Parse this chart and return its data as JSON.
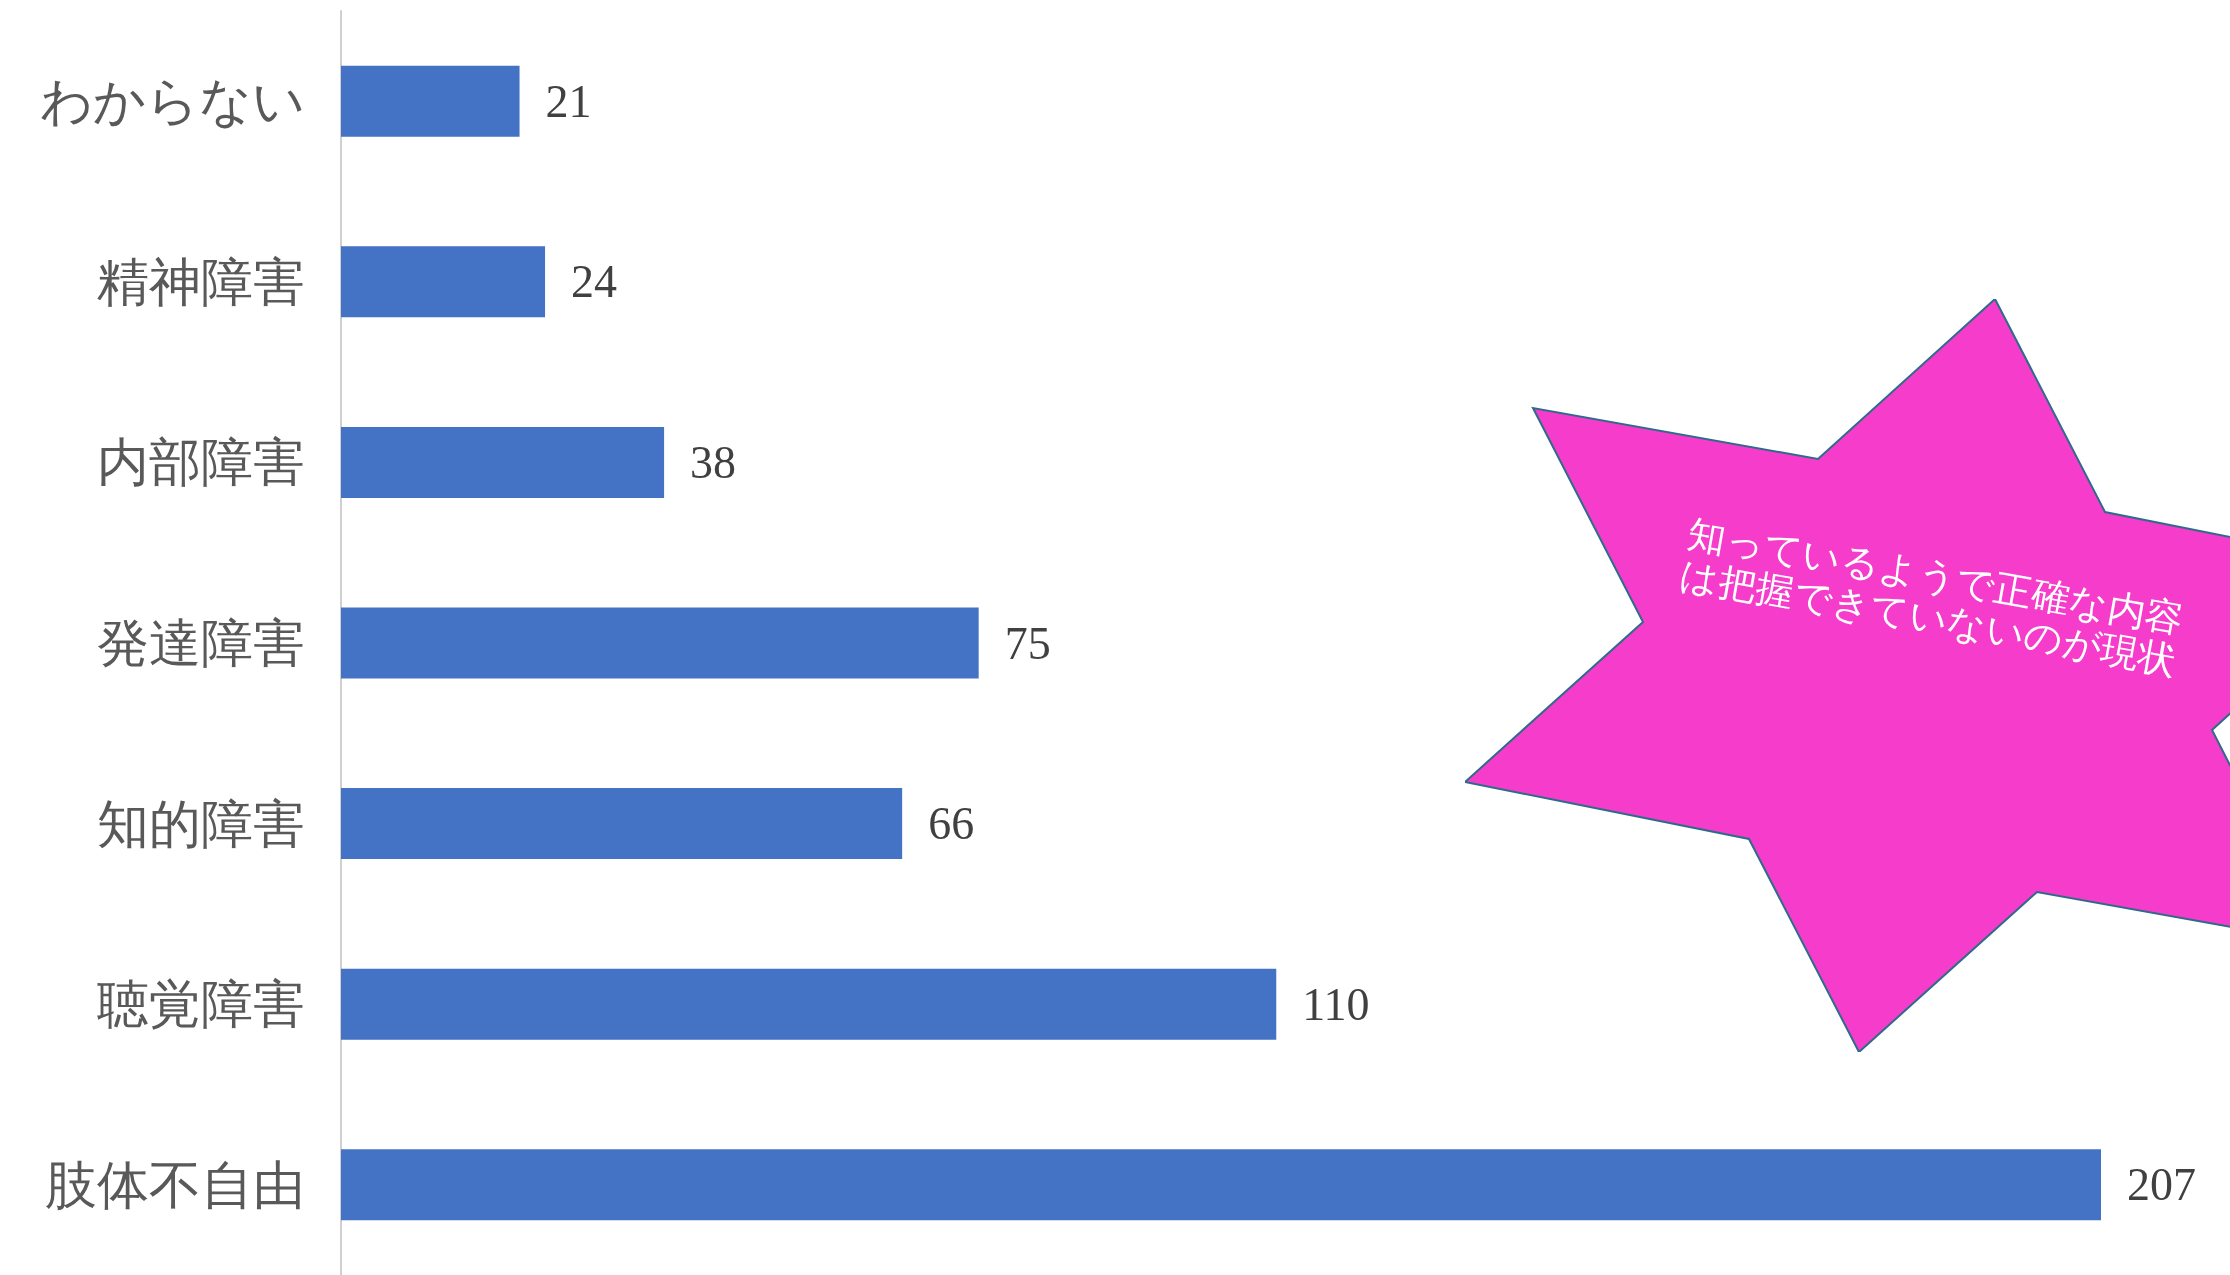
{
  "chart_data": {
    "type": "bar",
    "orientation": "horizontal",
    "categories": [
      "わからない",
      "精神障害",
      "内部障害",
      "発達障害",
      "知的障害",
      "聴覚障害",
      "肢体不自由"
    ],
    "values": [
      21,
      24,
      38,
      75,
      66,
      110,
      207
    ],
    "color": "#4472c4",
    "data_labels": true,
    "annotations": [
      "知っているようで正確な内容は把握できていないのが現状"
    ]
  }
}
